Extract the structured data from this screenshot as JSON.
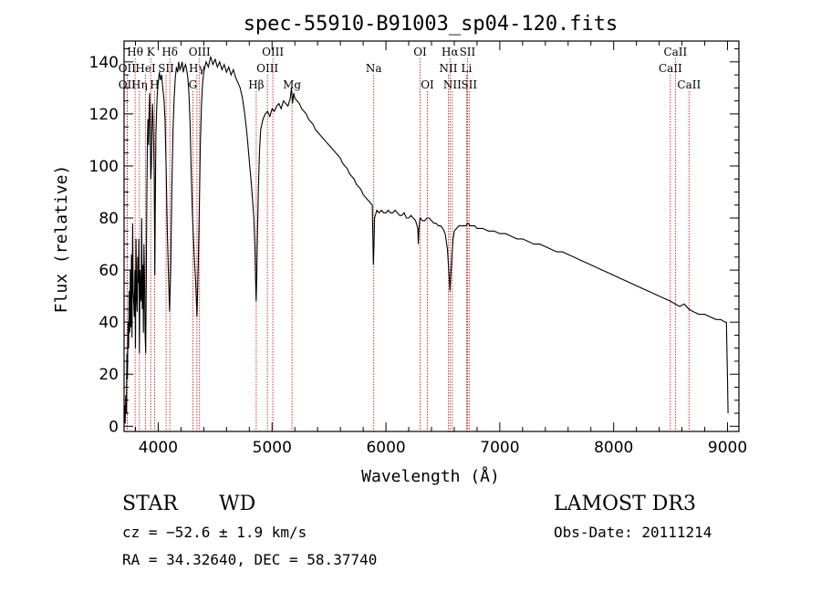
{
  "chart_data": {
    "type": "line",
    "title": "spec-55910-B91003_sp04-120.fits",
    "xlabel": "Wavelength (Å)",
    "ylabel": "Flux (relative)",
    "xlim": [
      3700,
      9100
    ],
    "ylim": [
      -2,
      148
    ],
    "xticks": [
      4000,
      5000,
      6000,
      7000,
      8000,
      9000
    ],
    "yticks": [
      0,
      20,
      40,
      60,
      80,
      100,
      120,
      140
    ],
    "series": [
      {
        "name": "flux",
        "points": [
          [
            3700,
            2
          ],
          [
            3705,
            8
          ],
          [
            3710,
            1
          ],
          [
            3715,
            12
          ],
          [
            3720,
            5
          ],
          [
            3725,
            28
          ],
          [
            3730,
            18
          ],
          [
            3735,
            40
          ],
          [
            3740,
            30
          ],
          [
            3745,
            52
          ],
          [
            3750,
            36
          ],
          [
            3755,
            60
          ],
          [
            3760,
            38
          ],
          [
            3765,
            66
          ],
          [
            3770,
            34
          ],
          [
            3775,
            78
          ],
          [
            3780,
            52
          ],
          [
            3785,
            48
          ],
          [
            3790,
            42
          ],
          [
            3795,
            60
          ],
          [
            3800,
            30
          ],
          [
            3805,
            72
          ],
          [
            3810,
            50
          ],
          [
            3815,
            44
          ],
          [
            3820,
            65
          ],
          [
            3825,
            55
          ],
          [
            3830,
            72
          ],
          [
            3835,
            28
          ],
          [
            3840,
            60
          ],
          [
            3845,
            52
          ],
          [
            3850,
            48
          ],
          [
            3855,
            80
          ],
          [
            3860,
            45
          ],
          [
            3865,
            62
          ],
          [
            3870,
            36
          ],
          [
            3875,
            70
          ],
          [
            3880,
            55
          ],
          [
            3885,
            35
          ],
          [
            3890,
            28
          ],
          [
            3895,
            55
          ],
          [
            3900,
            90
          ],
          [
            3905,
            110
          ],
          [
            3910,
            118
          ],
          [
            3915,
            108
          ],
          [
            3920,
            122
          ],
          [
            3925,
            128
          ],
          [
            3930,
            112
          ],
          [
            3935,
            95
          ],
          [
            3940,
            100
          ],
          [
            3945,
            116
          ],
          [
            3950,
            124
          ],
          [
            3955,
            118
          ],
          [
            3960,
            108
          ],
          [
            3965,
            95
          ],
          [
            3970,
            58
          ],
          [
            3975,
            88
          ],
          [
            3980,
            112
          ],
          [
            3985,
            120
          ],
          [
            3990,
            126
          ],
          [
            3995,
            130
          ],
          [
            4000,
            132
          ],
          [
            4010,
            136
          ],
          [
            4020,
            133
          ],
          [
            4030,
            135
          ],
          [
            4040,
            130
          ],
          [
            4050,
            126
          ],
          [
            4060,
            118
          ],
          [
            4070,
            98
          ],
          [
            4080,
            75
          ],
          [
            4090,
            58
          ],
          [
            4100,
            44
          ],
          [
            4110,
            62
          ],
          [
            4120,
            92
          ],
          [
            4130,
            114
          ],
          [
            4140,
            126
          ],
          [
            4150,
            134
          ],
          [
            4160,
            138
          ],
          [
            4170,
            136
          ],
          [
            4180,
            140
          ],
          [
            4190,
            137
          ],
          [
            4200,
            138
          ],
          [
            4210,
            140
          ],
          [
            4220,
            136
          ],
          [
            4230,
            138
          ],
          [
            4240,
            139
          ],
          [
            4250,
            137
          ],
          [
            4260,
            134
          ],
          [
            4270,
            128
          ],
          [
            4280,
            116
          ],
          [
            4290,
            98
          ],
          [
            4300,
            82
          ],
          [
            4310,
            72
          ],
          [
            4320,
            62
          ],
          [
            4330,
            55
          ],
          [
            4340,
            42
          ],
          [
            4350,
            58
          ],
          [
            4360,
            82
          ],
          [
            4370,
            108
          ],
          [
            4380,
            124
          ],
          [
            4390,
            132
          ],
          [
            4400,
            136
          ],
          [
            4420,
            140
          ],
          [
            4440,
            138
          ],
          [
            4460,
            142
          ],
          [
            4480,
            139
          ],
          [
            4500,
            141
          ],
          [
            4520,
            138
          ],
          [
            4540,
            140
          ],
          [
            4560,
            137
          ],
          [
            4580,
            139
          ],
          [
            4600,
            136
          ],
          [
            4620,
            138
          ],
          [
            4640,
            135
          ],
          [
            4660,
            137
          ],
          [
            4680,
            134
          ],
          [
            4700,
            132
          ],
          [
            4720,
            130
          ],
          [
            4740,
            126
          ],
          [
            4760,
            120
          ],
          [
            4780,
            112
          ],
          [
            4800,
            102
          ],
          [
            4820,
            92
          ],
          [
            4840,
            80
          ],
          [
            4850,
            68
          ],
          [
            4855,
            56
          ],
          [
            4860,
            48
          ],
          [
            4865,
            56
          ],
          [
            4870,
            70
          ],
          [
            4880,
            92
          ],
          [
            4890,
            106
          ],
          [
            4900,
            114
          ],
          [
            4920,
            118
          ],
          [
            4940,
            120
          ],
          [
            4960,
            121
          ],
          [
            4980,
            119
          ],
          [
            5000,
            122
          ],
          [
            5020,
            121
          ],
          [
            5040,
            123
          ],
          [
            5060,
            124
          ],
          [
            5080,
            122
          ],
          [
            5100,
            125
          ],
          [
            5120,
            124
          ],
          [
            5140,
            123
          ],
          [
            5160,
            126
          ],
          [
            5170,
            130
          ],
          [
            5180,
            124
          ],
          [
            5190,
            128
          ],
          [
            5200,
            126
          ],
          [
            5220,
            125
          ],
          [
            5240,
            124
          ],
          [
            5260,
            122
          ],
          [
            5280,
            121
          ],
          [
            5300,
            120
          ],
          [
            5320,
            118
          ],
          [
            5340,
            117
          ],
          [
            5360,
            116
          ],
          [
            5380,
            114
          ],
          [
            5400,
            113
          ],
          [
            5420,
            112
          ],
          [
            5440,
            111
          ],
          [
            5460,
            110
          ],
          [
            5480,
            109
          ],
          [
            5500,
            108
          ],
          [
            5520,
            107
          ],
          [
            5540,
            106
          ],
          [
            5560,
            105
          ],
          [
            5580,
            104
          ],
          [
            5600,
            103
          ],
          [
            5620,
            101
          ],
          [
            5640,
            100
          ],
          [
            5660,
            99
          ],
          [
            5680,
            97
          ],
          [
            5700,
            96
          ],
          [
            5720,
            95
          ],
          [
            5740,
            93
          ],
          [
            5760,
            92
          ],
          [
            5780,
            91
          ],
          [
            5800,
            89
          ],
          [
            5820,
            88
          ],
          [
            5840,
            87
          ],
          [
            5860,
            86
          ],
          [
            5880,
            85
          ],
          [
            5890,
            62
          ],
          [
            5895,
            70
          ],
          [
            5900,
            80
          ],
          [
            5920,
            83
          ],
          [
            5940,
            82
          ],
          [
            5960,
            83
          ],
          [
            5980,
            82
          ],
          [
            6000,
            82
          ],
          [
            6020,
            83
          ],
          [
            6040,
            82
          ],
          [
            6060,
            82
          ],
          [
            6080,
            83
          ],
          [
            6100,
            82
          ],
          [
            6120,
            81
          ],
          [
            6140,
            81
          ],
          [
            6160,
            82
          ],
          [
            6180,
            80
          ],
          [
            6200,
            80
          ],
          [
            6220,
            81
          ],
          [
            6240,
            80
          ],
          [
            6260,
            79
          ],
          [
            6280,
            76
          ],
          [
            6285,
            70
          ],
          [
            6290,
            76
          ],
          [
            6300,
            80
          ],
          [
            6320,
            79
          ],
          [
            6340,
            79
          ],
          [
            6360,
            80
          ],
          [
            6380,
            80
          ],
          [
            6400,
            79
          ],
          [
            6420,
            78
          ],
          [
            6440,
            78
          ],
          [
            6460,
            77
          ],
          [
            6480,
            77
          ],
          [
            6500,
            76
          ],
          [
            6520,
            74
          ],
          [
            6540,
            68
          ],
          [
            6555,
            58
          ],
          [
            6563,
            52
          ],
          [
            6570,
            58
          ],
          [
            6580,
            66
          ],
          [
            6590,
            72
          ],
          [
            6600,
            75
          ],
          [
            6620,
            76
          ],
          [
            6640,
            77
          ],
          [
            6660,
            77
          ],
          [
            6680,
            77
          ],
          [
            6700,
            77
          ],
          [
            6720,
            78
          ],
          [
            6740,
            77
          ],
          [
            6760,
            77
          ],
          [
            6780,
            77
          ],
          [
            6800,
            76
          ],
          [
            6850,
            76
          ],
          [
            6900,
            75
          ],
          [
            6950,
            75
          ],
          [
            7000,
            74
          ],
          [
            7050,
            74
          ],
          [
            7100,
            73
          ],
          [
            7150,
            72
          ],
          [
            7200,
            72
          ],
          [
            7250,
            71
          ],
          [
            7300,
            70
          ],
          [
            7350,
            70
          ],
          [
            7400,
            69
          ],
          [
            7450,
            68
          ],
          [
            7500,
            67
          ],
          [
            7550,
            67
          ],
          [
            7600,
            66
          ],
          [
            7650,
            65
          ],
          [
            7700,
            64
          ],
          [
            7750,
            63
          ],
          [
            7800,
            62
          ],
          [
            7850,
            61
          ],
          [
            7900,
            60
          ],
          [
            7950,
            59
          ],
          [
            8000,
            58
          ],
          [
            8050,
            57
          ],
          [
            8100,
            56
          ],
          [
            8150,
            55
          ],
          [
            8200,
            54
          ],
          [
            8250,
            53
          ],
          [
            8300,
            52
          ],
          [
            8350,
            51
          ],
          [
            8400,
            50
          ],
          [
            8450,
            49
          ],
          [
            8500,
            48
          ],
          [
            8540,
            47
          ],
          [
            8580,
            46
          ],
          [
            8620,
            47
          ],
          [
            8660,
            45
          ],
          [
            8700,
            44
          ],
          [
            8750,
            43
          ],
          [
            8800,
            43
          ],
          [
            8850,
            42
          ],
          [
            8900,
            41
          ],
          [
            8940,
            41
          ],
          [
            8980,
            40
          ],
          [
            8990,
            40
          ],
          [
            9000,
            18
          ],
          [
            9005,
            5
          ]
        ]
      }
    ],
    "lines": [
      {
        "label": "OII",
        "x": 3727,
        "row": 3
      },
      {
        "label": "OII",
        "x": 3727,
        "row": 2
      },
      {
        "label": "Hθ",
        "x": 3797,
        "row": 1
      },
      {
        "label": "Hη",
        "x": 3835,
        "row": 3
      },
      {
        "label": "HeI",
        "x": 3889,
        "row": 2
      },
      {
        "label": "K",
        "x": 3934,
        "row": 1
      },
      {
        "label": "SII",
        "x": 4069,
        "row": 2
      },
      {
        "label": "H",
        "x": 3968,
        "row": 3
      },
      {
        "label": "Hδ",
        "x": 4102,
        "row": 1
      },
      {
        "label": "OIII",
        "x": 4363,
        "row": 1
      },
      {
        "label": "Hγ",
        "x": 4340,
        "row": 2
      },
      {
        "label": "G",
        "x": 4304,
        "row": 3
      },
      {
        "label": "Hβ",
        "x": 4861,
        "row": 3
      },
      {
        "label": "OIII",
        "x": 4959,
        "row": 2
      },
      {
        "label": "OIII",
        "x": 5007,
        "row": 1
      },
      {
        "label": "Mg",
        "x": 5175,
        "row": 3
      },
      {
        "label": "Na",
        "x": 5893,
        "row": 2
      },
      {
        "label": "OI",
        "x": 6300,
        "row": 1
      },
      {
        "label": "OI",
        "x": 6364,
        "row": 3
      },
      {
        "label": "NII",
        "x": 6548,
        "row": 2
      },
      {
        "label": "Hα",
        "x": 6563,
        "row": 1
      },
      {
        "label": "NII",
        "x": 6583,
        "row": 3
      },
      {
        "label": "SII",
        "x": 6716,
        "row": 1
      },
      {
        "label": "Li",
        "x": 6708,
        "row": 2
      },
      {
        "label": "SII",
        "x": 6731,
        "row": 3
      },
      {
        "label": "CaII",
        "x": 8498,
        "row": 2
      },
      {
        "label": "CaII",
        "x": 8542,
        "row": 1
      },
      {
        "label": "CaII",
        "x": 8662,
        "row": 3
      }
    ]
  },
  "info": {
    "object_type": "STAR",
    "subclass": "WD",
    "survey": "LAMOST DR3",
    "cz": "cz = −52.6 ± 1.9 km/s",
    "obs_date": "Obs-Date: 20111214",
    "coords": "RA =  34.32640, DEC =  58.37740"
  }
}
